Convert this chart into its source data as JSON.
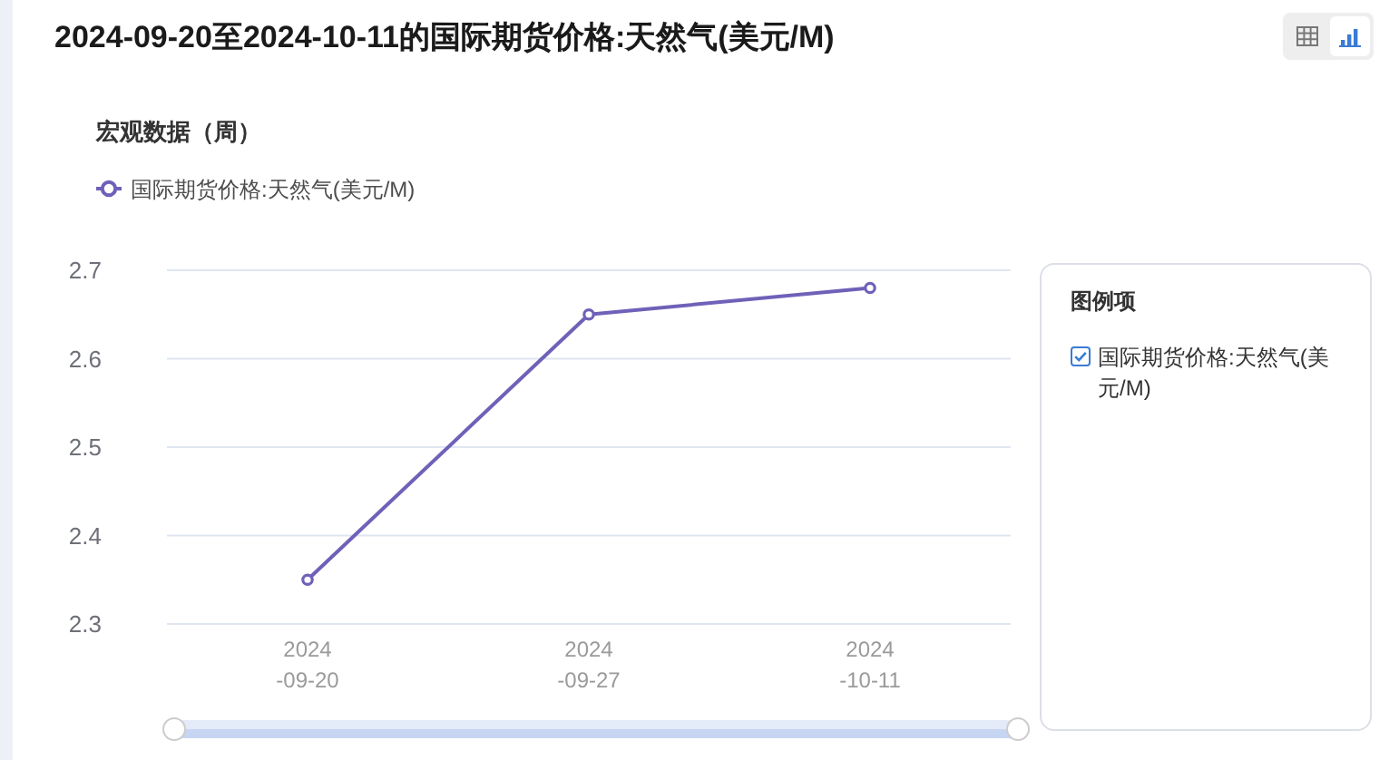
{
  "chart_data": {
    "type": "line",
    "title": "2024-09-20至2024-10-11的国际期货价格:天然气(美元/M)",
    "subtitle": "宏观数据（周）",
    "legend_title": "图例项",
    "categories": [
      "2024-09-20",
      "2024-09-27",
      "2024-10-11"
    ],
    "series": [
      {
        "name": "国际期货价格:天然气(美元/M)",
        "color": "#6f61b8",
        "values": [
          2.35,
          2.65,
          2.68
        ]
      }
    ],
    "ylim": [
      2.3,
      2.7
    ],
    "yticks": [
      2.3,
      2.4,
      2.5,
      2.6,
      2.7
    ],
    "grid": "y",
    "legend": "top left",
    "marker": "circle",
    "line_style": "solid"
  }
}
